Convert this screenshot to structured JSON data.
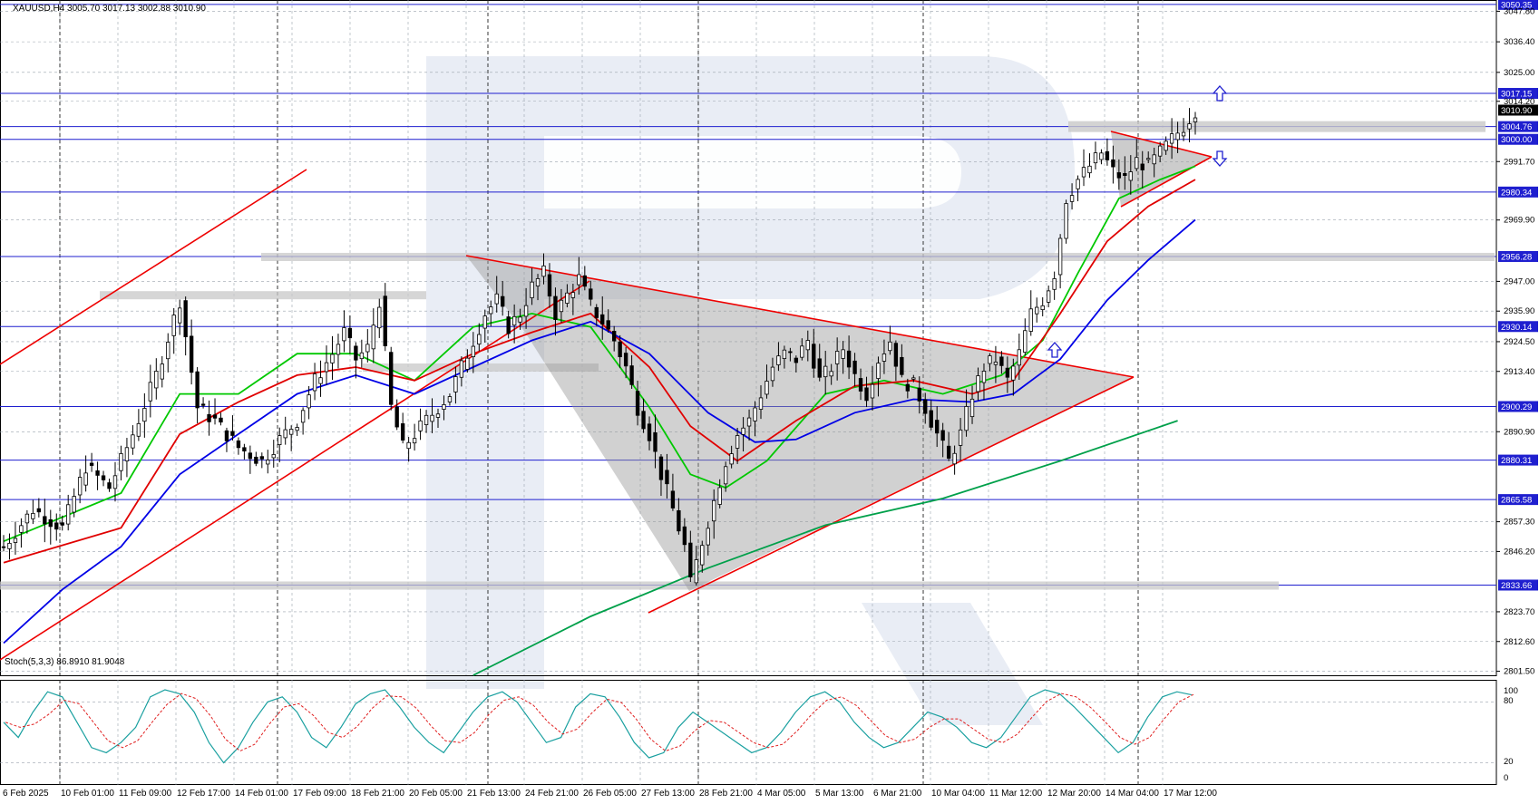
{
  "chart_data": {
    "type": "candlestick",
    "symbol_header": "XAUUSD,H4  3005.70 3017.13 3002.88 3010.90",
    "price_axis": {
      "ylim": [
        2800,
        3052
      ],
      "ticks": [
        "3047.80",
        "3036.40",
        "3025.00",
        "3014.20",
        "2991.70",
        "2969.90",
        "2947.00",
        "2935.90",
        "2924.50",
        "2913.40",
        "2890.90",
        "2857.30",
        "2846.20",
        "2823.70",
        "2812.60",
        "2801.50"
      ]
    },
    "levels": [
      {
        "value": 3050.35,
        "label": "3050.35"
      },
      {
        "value": 3017.15,
        "label": "3017.15"
      },
      {
        "value": 3004.76,
        "label": "3004.76"
      },
      {
        "value": 3000.0,
        "label": "3000.00"
      },
      {
        "value": 2980.34,
        "label": "2980.34"
      },
      {
        "value": 2956.28,
        "label": "2956.28"
      },
      {
        "value": 2930.14,
        "label": "2930.14"
      },
      {
        "value": 2900.29,
        "label": "2900.29"
      },
      {
        "value": 2880.31,
        "label": "2880.31"
      },
      {
        "value": 2865.58,
        "label": "2865.58"
      },
      {
        "value": 2833.66,
        "label": "2833.66"
      }
    ],
    "current_price": {
      "value": 3010.9,
      "label": "3010.90"
    },
    "x_labels": [
      "6 Feb 2025",
      "10 Feb 01:00",
      "11 Feb 09:00",
      "12 Feb 17:00",
      "14 Feb 01:00",
      "17 Feb 09:00",
      "18 Feb 21:00",
      "20 Feb 05:00",
      "21 Feb 13:00",
      "24 Feb 21:00",
      "26 Feb 05:00",
      "27 Feb 13:00",
      "28 Feb 21:00",
      "4 Mar 05:00",
      "5 Mar 13:00",
      "6 Mar 21:00",
      "10 Mar 04:00",
      "11 Mar 12:00",
      "12 Mar 20:00",
      "14 Mar 04:00",
      "17 Mar 12:00"
    ],
    "price_path": [
      [
        0,
        2848
      ],
      [
        5,
        2862
      ],
      [
        10,
        2855
      ],
      [
        14,
        2878
      ],
      [
        18,
        2870
      ],
      [
        22,
        2890
      ],
      [
        26,
        2912
      ],
      [
        30,
        2940
      ],
      [
        33,
        2900
      ],
      [
        36,
        2895
      ],
      [
        40,
        2885
      ],
      [
        44,
        2880
      ],
      [
        47,
        2888
      ],
      [
        50,
        2895
      ],
      [
        53,
        2910
      ],
      [
        56,
        2920
      ],
      [
        58,
        2928
      ],
      [
        60,
        2918
      ],
      [
        62,
        2922
      ],
      [
        64,
        2940
      ],
      [
        66,
        2900
      ],
      [
        68,
        2885
      ],
      [
        70,
        2890
      ],
      [
        72,
        2895
      ],
      [
        74,
        2900
      ],
      [
        76,
        2905
      ],
      [
        78,
        2915
      ],
      [
        80,
        2925
      ],
      [
        82,
        2935
      ],
      [
        84,
        2940
      ],
      [
        86,
        2930
      ],
      [
        88,
        2935
      ],
      [
        90,
        2945
      ],
      [
        92,
        2950
      ],
      [
        94,
        2935
      ],
      [
        96,
        2942
      ],
      [
        98,
        2948
      ],
      [
        100,
        2938
      ],
      [
        102,
        2932
      ],
      [
        104,
        2925
      ],
      [
        106,
        2915
      ],
      [
        108,
        2900
      ],
      [
        110,
        2890
      ],
      [
        112,
        2875
      ],
      [
        114,
        2862
      ],
      [
        116,
        2848
      ],
      [
        117,
        2834
      ],
      [
        119,
        2850
      ],
      [
        121,
        2865
      ],
      [
        123,
        2880
      ],
      [
        125,
        2890
      ],
      [
        127,
        2895
      ],
      [
        129,
        2905
      ],
      [
        131,
        2915
      ],
      [
        133,
        2920
      ],
      [
        135,
        2918
      ],
      [
        137,
        2925
      ],
      [
        139,
        2910
      ],
      [
        141,
        2915
      ],
      [
        143,
        2922
      ],
      [
        145,
        2912
      ],
      [
        147,
        2905
      ],
      [
        149,
        2918
      ],
      [
        151,
        2925
      ],
      [
        153,
        2910
      ],
      [
        155,
        2908
      ],
      [
        157,
        2900
      ],
      [
        159,
        2890
      ],
      [
        161,
        2880
      ],
      [
        163,
        2890
      ],
      [
        165,
        2905
      ],
      [
        167,
        2915
      ],
      [
        169,
        2918
      ],
      [
        171,
        2910
      ],
      [
        173,
        2920
      ],
      [
        175,
        2935
      ],
      [
        177,
        2940
      ],
      [
        179,
        2950
      ],
      [
        181,
        2978
      ],
      [
        183,
        2985
      ],
      [
        185,
        2990
      ],
      [
        187,
        2995
      ],
      [
        189,
        2988
      ],
      [
        191,
        2985
      ],
      [
        193,
        2992
      ],
      [
        195,
        2990
      ],
      [
        197,
        2995
      ],
      [
        199,
        3000
      ],
      [
        201,
        3005
      ],
      [
        203,
        3011
      ]
    ],
    "price_span": {
      "xmax": 203,
      "ymin": 2800,
      "ymax": 3052
    },
    "moving_averages": [
      {
        "color": "#00c800",
        "points": [
          [
            0,
            2850
          ],
          [
            20,
            2868
          ],
          [
            30,
            2905
          ],
          [
            40,
            2905
          ],
          [
            50,
            2920
          ],
          [
            60,
            2920
          ],
          [
            70,
            2910
          ],
          [
            80,
            2930
          ],
          [
            90,
            2935
          ],
          [
            100,
            2930
          ],
          [
            110,
            2900
          ],
          [
            117,
            2875
          ],
          [
            123,
            2870
          ],
          [
            130,
            2880
          ],
          [
            140,
            2905
          ],
          [
            150,
            2910
          ],
          [
            160,
            2905
          ],
          [
            170,
            2912
          ],
          [
            177,
            2925
          ],
          [
            183,
            2950
          ],
          [
            190,
            2978
          ],
          [
            197,
            2985
          ],
          [
            203,
            2990
          ]
        ]
      },
      {
        "color": "#e00000",
        "points": [
          [
            0,
            2842
          ],
          [
            20,
            2855
          ],
          [
            30,
            2890
          ],
          [
            40,
            2902
          ],
          [
            50,
            2912
          ],
          [
            60,
            2915
          ],
          [
            70,
            2910
          ],
          [
            80,
            2920
          ],
          [
            90,
            2928
          ],
          [
            100,
            2935
          ],
          [
            110,
            2915
          ],
          [
            117,
            2893
          ],
          [
            125,
            2880
          ],
          [
            135,
            2895
          ],
          [
            145,
            2908
          ],
          [
            155,
            2910
          ],
          [
            165,
            2905
          ],
          [
            172,
            2910
          ],
          [
            180,
            2935
          ],
          [
            188,
            2962
          ],
          [
            195,
            2975
          ],
          [
            203,
            2985
          ]
        ]
      },
      {
        "color": "#0000e6",
        "points": [
          [
            0,
            2812
          ],
          [
            10,
            2832
          ],
          [
            20,
            2848
          ],
          [
            30,
            2875
          ],
          [
            40,
            2890
          ],
          [
            50,
            2905
          ],
          [
            60,
            2912
          ],
          [
            70,
            2905
          ],
          [
            80,
            2915
          ],
          [
            90,
            2925
          ],
          [
            100,
            2932
          ],
          [
            110,
            2920
          ],
          [
            120,
            2898
          ],
          [
            128,
            2887
          ],
          [
            135,
            2888
          ],
          [
            145,
            2898
          ],
          [
            155,
            2903
          ],
          [
            165,
            2902
          ],
          [
            172,
            2905
          ],
          [
            180,
            2918
          ],
          [
            188,
            2940
          ],
          [
            195,
            2955
          ],
          [
            203,
            2970
          ]
        ]
      },
      {
        "color": "#00a04a",
        "points": [
          [
            80,
            2800
          ],
          [
            100,
            2822
          ],
          [
            120,
            2840
          ],
          [
            140,
            2856
          ],
          [
            160,
            2866
          ],
          [
            180,
            2880
          ],
          [
            200,
            2895
          ]
        ]
      }
    ],
    "oscillator": {
      "label": "Stoch(5,3,3) 86.8910 81.9048",
      "ticks": [
        "100",
        "80",
        "20",
        "0"
      ],
      "ylim": [
        0,
        100
      ],
      "k_color": "#1aa0a0",
      "d_color": "#e02020",
      "k": [
        60,
        45,
        70,
        90,
        85,
        60,
        35,
        30,
        40,
        55,
        85,
        92,
        88,
        70,
        40,
        20,
        35,
        60,
        80,
        85,
        70,
        45,
        35,
        55,
        78,
        88,
        92,
        75,
        55,
        40,
        30,
        50,
        70,
        85,
        90,
        80,
        60,
        40,
        45,
        75,
        88,
        85,
        65,
        40,
        25,
        30,
        55,
        70,
        60,
        50,
        40,
        30,
        35,
        50,
        70,
        85,
        90,
        80,
        60,
        45,
        35,
        40,
        55,
        70,
        65,
        55,
        40,
        35,
        45,
        65,
        85,
        92,
        88,
        75,
        60,
        45,
        30,
        40,
        65,
        85,
        90,
        87
      ]
    }
  }
}
